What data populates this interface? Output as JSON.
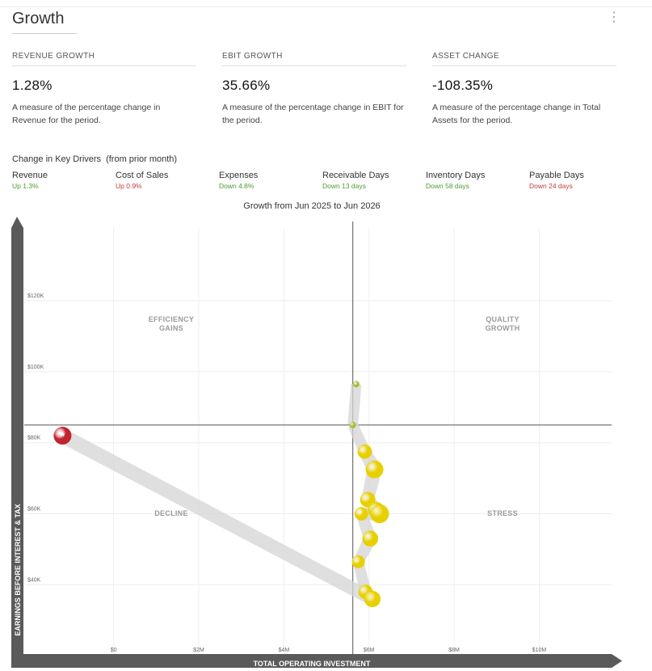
{
  "header": {
    "title": "Growth",
    "menu_icon": "kebab-vertical-icon"
  },
  "metrics": [
    {
      "label": "REVENUE GROWTH",
      "value": "1.28%",
      "description": "A measure of the percentage change in Revenue for the period."
    },
    {
      "label": "EBIT GROWTH",
      "value": "35.66%",
      "description": "A measure of the percentage change in EBIT for the period."
    },
    {
      "label": "ASSET CHANGE",
      "value": "-108.35%",
      "description": "A measure of the percentage change in Total Assets for the period."
    }
  ],
  "drivers": {
    "heading": "Change in Key Drivers",
    "subheading": "(from prior month)",
    "items": [
      {
        "name": "Revenue",
        "change": "Up 1.3%",
        "color": "#4e9a32"
      },
      {
        "name": "Cost of Sales",
        "change": "Up 0.9%",
        "color": "#c23b3b"
      },
      {
        "name": "Expenses",
        "change": "Down 4.8%",
        "color": "#4e9a32"
      },
      {
        "name": "Receivable Days",
        "change": "Down 13 days",
        "color": "#4e9a32"
      },
      {
        "name": "Inventory Days",
        "change": "Down 58 days",
        "color": "#4e9a32"
      },
      {
        "name": "Payable Days",
        "change": "Down 24 days",
        "color": "#c23b3b"
      }
    ]
  },
  "chart_data": {
    "type": "scatter",
    "title": "Growth from Jun 2025 to Jun 2026",
    "xlabel": "TOTAL OPERATING INVESTMENT",
    "ylabel": "EARNINGS BEFORE INTEREST & TAX",
    "x_tick_labels": [
      "$0",
      "$2M",
      "$4M",
      "$6M",
      "$8M",
      "$10M"
    ],
    "x_ticks": [
      0,
      2000000,
      4000000,
      6000000,
      8000000,
      10000000
    ],
    "y_tick_labels": [
      "$40K",
      "$60K",
      "$80K",
      "$100K",
      "$120K"
    ],
    "y_ticks": [
      40000,
      60000,
      80000,
      100000,
      120000
    ],
    "xlim": [
      -2100000,
      11700000
    ],
    "ylim": [
      20500,
      140500
    ],
    "grid": true,
    "quadrants": {
      "top_left": "EFFICIENCY GAINS",
      "top_right": "QUALITY GROWTH",
      "bottom_left": "DECLINE",
      "bottom_right": "STRESS"
    },
    "divider": {
      "x": 5620000,
      "y": 85000
    },
    "colors": {
      "current": "#c0242f",
      "past": "#e8d000",
      "recent": "#a8c030",
      "trail": "#d4d4d4"
    },
    "points": [
      {
        "x": 5700000,
        "y": 96500,
        "size": 1,
        "style": "recent"
      },
      {
        "x": 5620000,
        "y": 85000,
        "size": 1,
        "style": "recent"
      },
      {
        "x": 5900000,
        "y": 77500,
        "size": 1.3,
        "style": "past"
      },
      {
        "x": 6130000,
        "y": 72500,
        "size": 2,
        "style": "past"
      },
      {
        "x": 5970000,
        "y": 64000,
        "size": 1.5,
        "style": "past"
      },
      {
        "x": 6170000,
        "y": 61000,
        "size": 1.7,
        "style": "past"
      },
      {
        "x": 6250000,
        "y": 60000,
        "size": 2.2,
        "style": "past"
      },
      {
        "x": 5820000,
        "y": 60000,
        "size": 1.1,
        "style": "past"
      },
      {
        "x": 6030000,
        "y": 53000,
        "size": 1.6,
        "style": "past"
      },
      {
        "x": 5750000,
        "y": 46500,
        "size": 1,
        "style": "past"
      },
      {
        "x": 5920000,
        "y": 38000,
        "size": 1.3,
        "style": "past"
      },
      {
        "x": 6080000,
        "y": 36000,
        "size": 1.7,
        "style": "past"
      },
      {
        "x": -1200000,
        "y": 82000,
        "size": 2,
        "style": "current"
      }
    ],
    "current_marker": "*"
  }
}
